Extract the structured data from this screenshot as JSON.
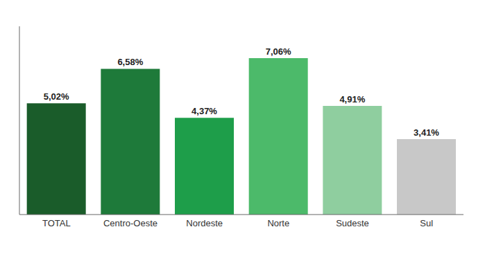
{
  "chart_data": {
    "type": "bar",
    "categories": [
      "TOTAL",
      "Centro-Oeste",
      "Nordeste",
      "Norte",
      "Sudeste",
      "Sul"
    ],
    "values": [
      5.02,
      6.58,
      4.37,
      7.06,
      4.91,
      3.41
    ],
    "value_labels": [
      "5,02%",
      "6,58%",
      "4,37%",
      "7,06%",
      "4,91%",
      "3,41%"
    ],
    "colors": [
      "#1a5c2a",
      "#1e7a3a",
      "#1e9e4a",
      "#4cba6a",
      "#8fce9f",
      "#c8c8c8"
    ],
    "ylim": [
      0,
      8.5
    ],
    "data_labels": true,
    "tick_labels": "x",
    "grid": false
  }
}
